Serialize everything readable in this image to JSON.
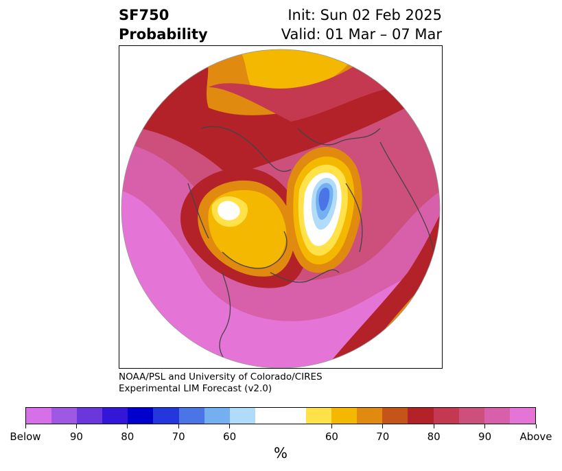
{
  "header": {
    "title_line1": "SF750",
    "title_line2": "Probability",
    "init": "Init: Sun 02 Feb 2025",
    "valid": "Valid: 01 Mar – 07 Mar"
  },
  "credit": {
    "line1": "NOAA/PSL and University of Colorado/CIRES",
    "line2": "Experimental LIM Forecast (v2.0)"
  },
  "colorbar": {
    "unit": "%",
    "colors": [
      "#d670e8",
      "#9e58e4",
      "#6a37dc",
      "#3416d8",
      "#0000cd",
      "#2437dc",
      "#4b74e6",
      "#74b0f0",
      "#b0dcfa",
      "#ffffff",
      "#ffffff",
      "#ffe24a",
      "#f5b800",
      "#e08a10",
      "#c45418",
      "#b22228",
      "#c43850",
      "#cc4f7c",
      "#d860aa",
      "#e474d6"
    ],
    "tick_labels": [
      "Below",
      "90",
      "80",
      "70",
      "60",
      "60",
      "70",
      "80",
      "90",
      "Above"
    ]
  },
  "map": {
    "background_color": "#d65fa8"
  }
}
